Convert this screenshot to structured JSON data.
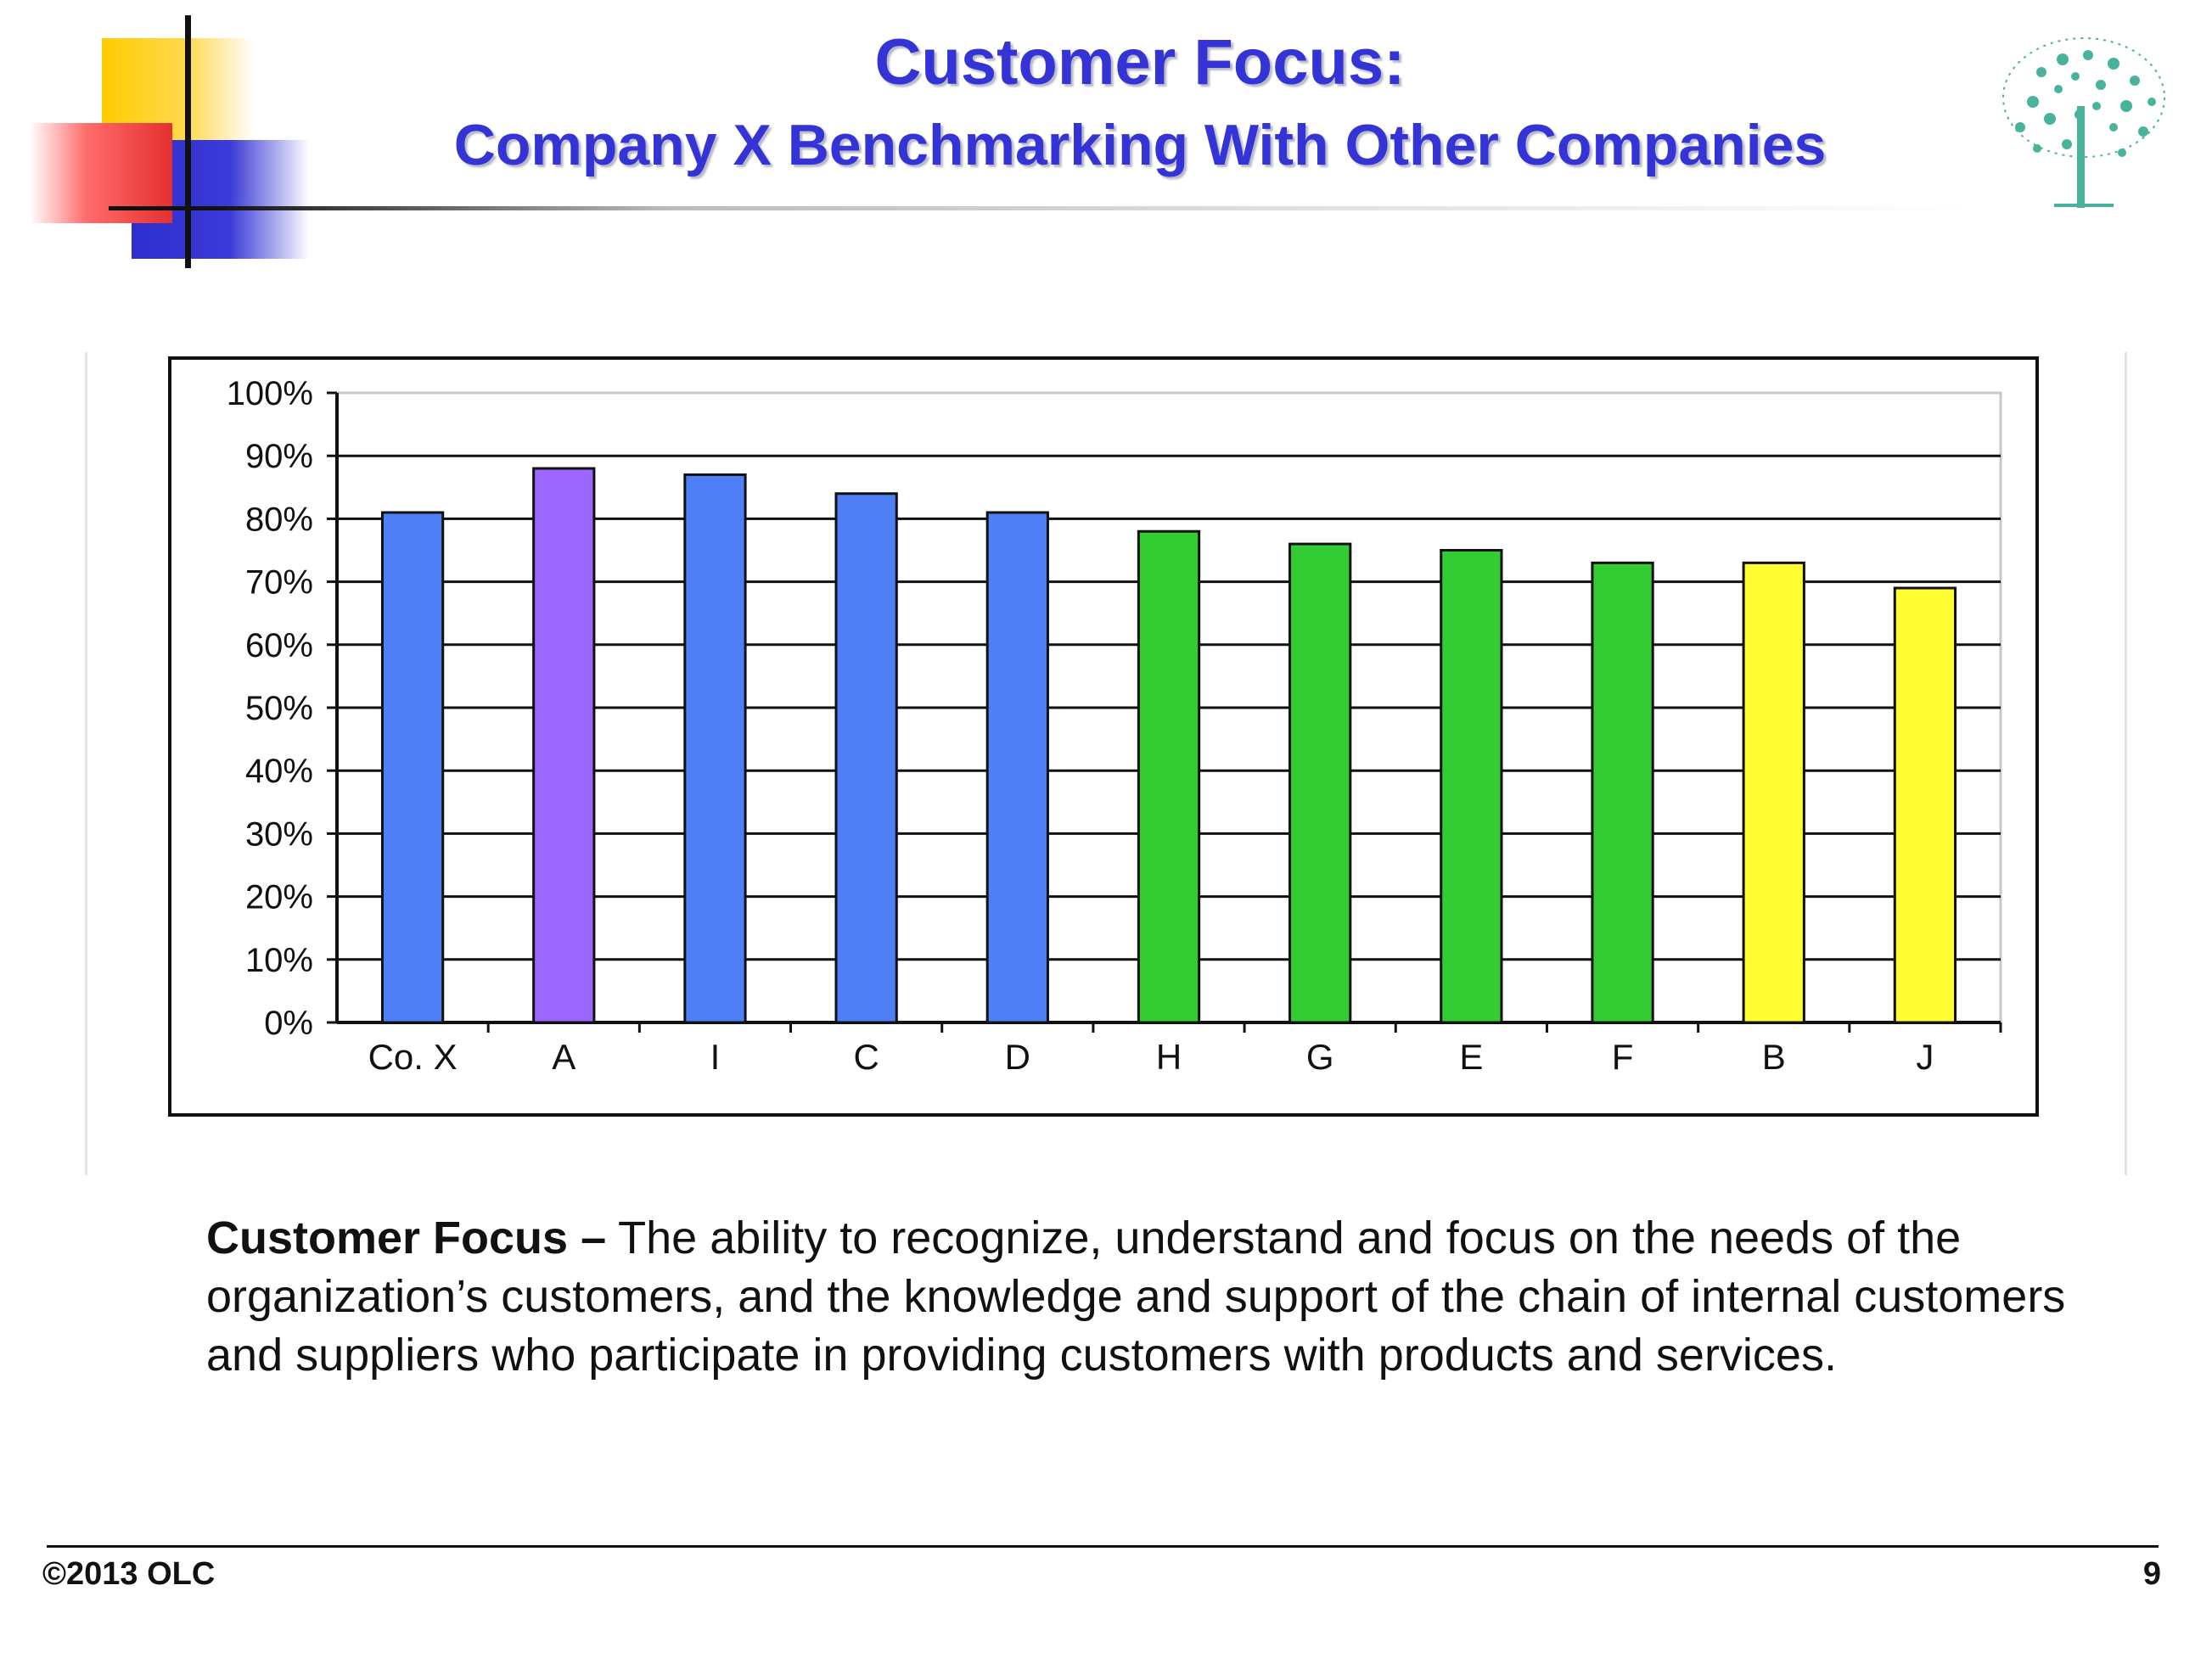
{
  "slide": {
    "title": "Customer Focus:",
    "subtitle": "Company X Benchmarking With Other Companies",
    "description_term": "Customer Focus –",
    "description_text": " The ability to recognize, understand and focus on the needs of the organization’s customers, and the knowledge and support of the chain of internal customers and suppliers who participate in providing customers with products and services.",
    "copyright": "©2013 OLC",
    "page_number": "9"
  },
  "colors": {
    "title": "#3434d6",
    "co_x_and_peers": "#4f7ff7",
    "highlight": "#9966ff",
    "mid": "#33cc33",
    "low": "#ffff33"
  },
  "chart_data": {
    "type": "bar",
    "title": "",
    "xlabel": "",
    "ylabel": "",
    "ylim": [
      0,
      100
    ],
    "yticks": [
      "0%",
      "10%",
      "20%",
      "30%",
      "40%",
      "50%",
      "60%",
      "70%",
      "80%",
      "90%",
      "100%"
    ],
    "grid": true,
    "legend": "none",
    "categories": [
      "Co. X",
      "A",
      "I",
      "C",
      "D",
      "H",
      "G",
      "E",
      "F",
      "B",
      "J"
    ],
    "values": [
      81,
      88,
      87,
      84,
      81,
      78,
      76,
      75,
      73,
      73,
      69
    ],
    "bar_colors": [
      "#4f7ff7",
      "#9966ff",
      "#4f7ff7",
      "#4f7ff7",
      "#4f7ff7",
      "#33cc33",
      "#33cc33",
      "#33cc33",
      "#33cc33",
      "#ffff33",
      "#ffff33"
    ]
  }
}
